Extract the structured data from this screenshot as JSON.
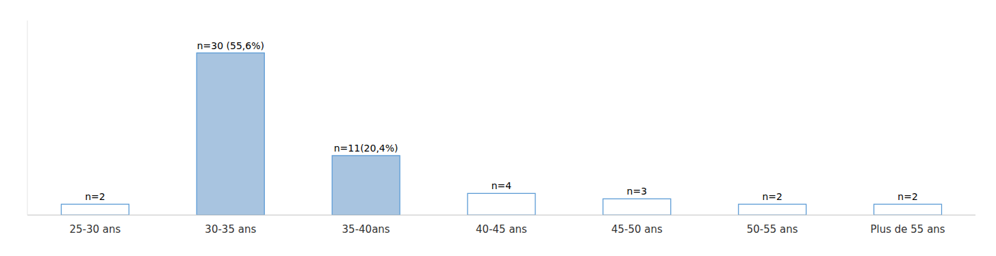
{
  "chart_data": {
    "type": "bar",
    "categories": [
      "25-30 ans",
      "30-35 ans",
      "35-40ans",
      "40-45 ans",
      "45-50 ans",
      "50-55 ans",
      "Plus de 55 ans"
    ],
    "values": [
      2,
      30,
      11,
      4,
      3,
      2,
      2
    ],
    "value_labels": [
      "n=2",
      "n=30 (55,6%)",
      "n=11(20,4%)",
      "n=4",
      "n=3",
      "n=2",
      "n=2"
    ],
    "data_labels": true,
    "colors": [
      "#ffffff",
      "#a8c4e0",
      "#a8c4e0",
      "#ffffff",
      "#ffffff",
      "#ffffff",
      "#ffffff"
    ],
    "color": "#5b9bd5",
    "ylim": [
      0,
      36
    ],
    "grid": false,
    "tick_labels": "x"
  }
}
